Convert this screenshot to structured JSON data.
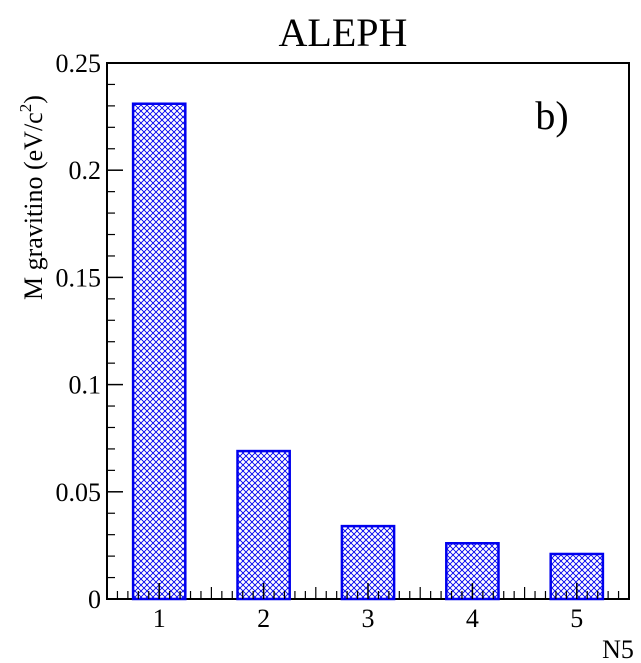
{
  "chart_data": {
    "type": "bar",
    "title": "ALEPH",
    "panel_label": "b)",
    "xlabel": "N5",
    "ylabel_main": "M gravitino  (eV/c",
    "ylabel_sup": "2",
    "ylabel_close": ")",
    "categories": [
      "1",
      "2",
      "3",
      "4",
      "5"
    ],
    "values": [
      0.231,
      0.069,
      0.034,
      0.026,
      0.021
    ],
    "ylim": [
      0,
      0.25
    ],
    "yticks": [
      "0",
      "0.05",
      "0.1",
      "0.15",
      "0.2",
      "0.25"
    ],
    "bar_fill": "hatched",
    "colors": {
      "bar_edge": "#0000ee",
      "hatch": "#0000ee",
      "axis": "#000000"
    }
  }
}
